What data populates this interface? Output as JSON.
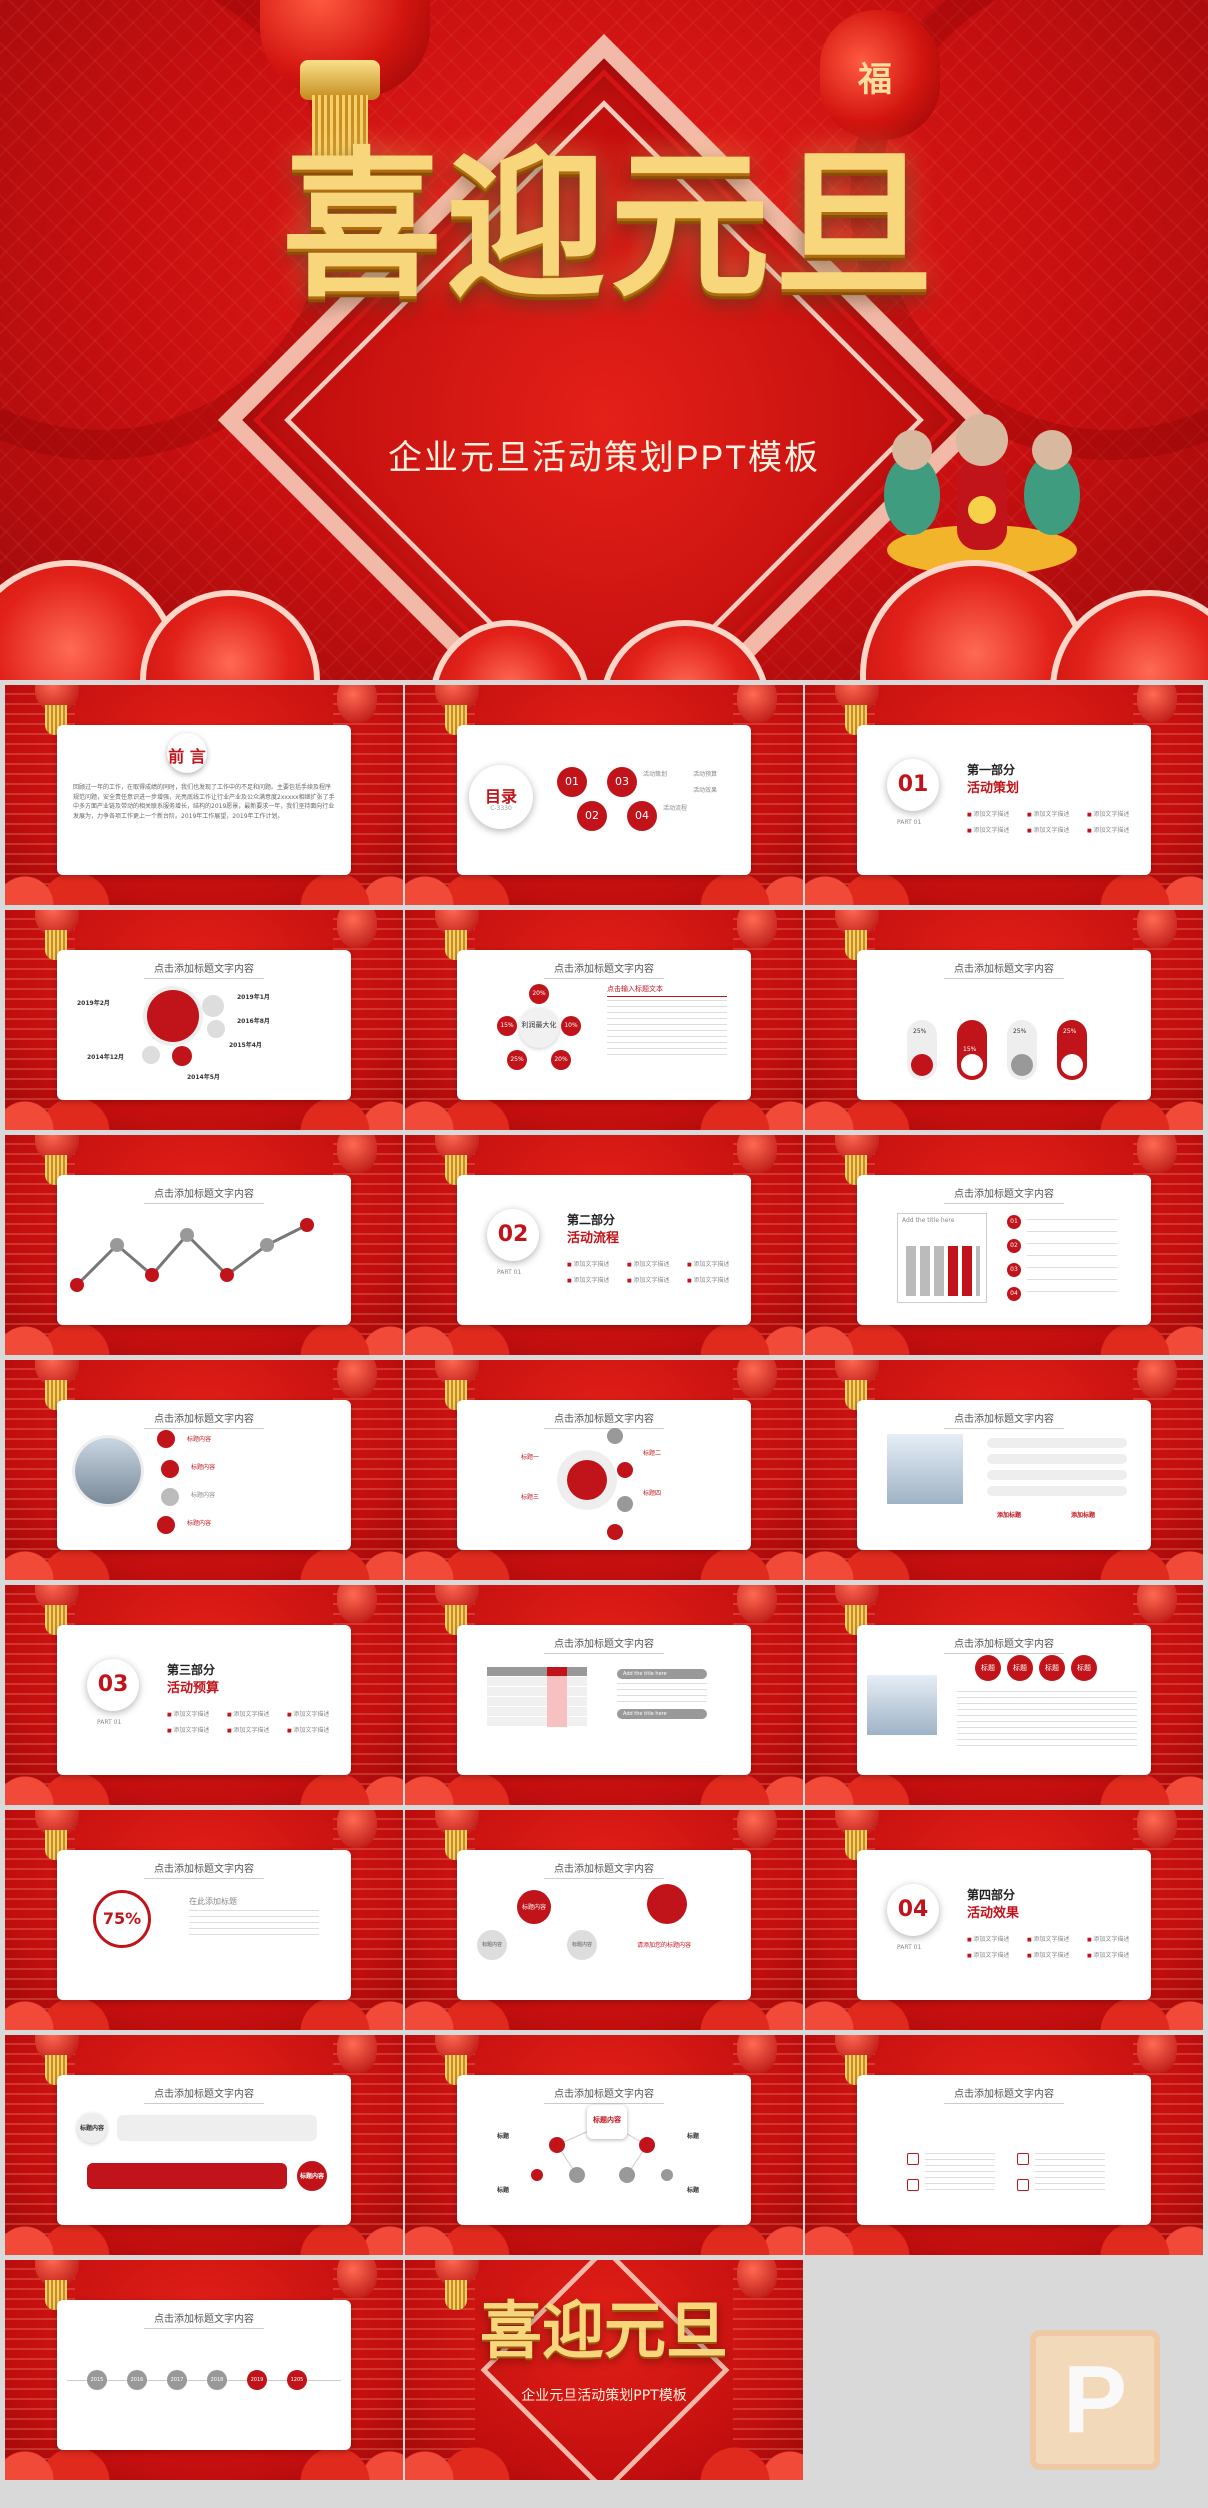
{
  "hero": {
    "title": "喜迎元旦",
    "subtitle": "企业元旦活动策划PPT模板",
    "lantern_char": "福"
  },
  "slides": {
    "s1": {
      "heading": "前 言",
      "body": "回顾过一年的工作，在取得成绩的同时，我们也发现了工作中的不足和问题。主要包括手续及程序规范问题，安全责任意识进一步增强，光亮底线工作让行业产业及公众满意度2xxxxx相继扩张了手中多方面产业链及带动的相关联系服务增长，结构的2019愿景，最新要求一年，我们坚持面向行业发展为，力争各项工作更上一个新台阶。2019年工作展望，2019年工作计划。"
    },
    "s2": {
      "heading": "目录",
      "heading_sub": "C-3330",
      "items": [
        "01",
        "02",
        "03",
        "04"
      ],
      "labels": [
        "活动策划",
        "活动流程",
        "活动预算",
        "活动效果"
      ]
    },
    "s3": {
      "num": "01",
      "head": "第一部分",
      "sub": "活动策划",
      "part": "PART 01",
      "bullets": [
        "添加文字描述",
        "添加文字描述",
        "添加文字描述",
        "添加文字描述",
        "添加文字描述",
        "添加文字描述"
      ]
    },
    "s4": {
      "title": "点击添加标题文字内容",
      "dates": [
        "2019年2月",
        "2019年1月",
        "2016年8月",
        "2015年4月",
        "2014年12月",
        "2014年5月"
      ]
    },
    "s5": {
      "title": "点击添加标题文字内容",
      "center": "利润最大化",
      "pcts": [
        "20%",
        "15%",
        "10%",
        "25%",
        "20%"
      ],
      "side_title": "点击输入标题文本"
    },
    "s6": {
      "title": "点击添加标题文字内容",
      "pcts": [
        "25%",
        "15%",
        "25%",
        "25%"
      ]
    },
    "s7": {
      "title": "点击添加标题文字内容"
    },
    "s8": {
      "num": "02",
      "head": "第二部分",
      "sub": "活动流程",
      "part": "PART 01",
      "bullets": [
        "添加文字描述",
        "添加文字描述",
        "添加文字描述",
        "添加文字描述",
        "添加文字描述",
        "添加文字描述"
      ]
    },
    "s9": {
      "title": "点击添加标题文字内容",
      "nums": [
        "01",
        "02",
        "03",
        "04"
      ],
      "chart_head": "Add the title here"
    },
    "s10": {
      "title": "点击添加标题文字内容",
      "items": [
        "标题内容",
        "标题内容",
        "标题内容",
        "标题内容"
      ]
    },
    "s11": {
      "title": "点击添加标题文字内容",
      "items": [
        "标题一",
        "标题二",
        "标题三",
        "标题四"
      ]
    },
    "s12": {
      "title": "点击添加标题文字内容",
      "labels": [
        "添加标题",
        "添加标题"
      ]
    },
    "s13": {
      "num": "03",
      "head": "第三部分",
      "sub": "活动预算",
      "part": "PART 01",
      "bullets": [
        "添加文字描述",
        "添加文字描述",
        "添加文字描述",
        "添加文字描述",
        "添加文字描述",
        "添加文字描述"
      ]
    },
    "s14": {
      "title": "点击添加标题文字内容",
      "pills": [
        "Add the title here",
        "Add the title here"
      ]
    },
    "s15": {
      "title": "点击添加标题文字内容",
      "tags": [
        "标题",
        "标题",
        "标题",
        "标题"
      ]
    },
    "s16": {
      "title": "点击添加标题文字内容",
      "pct": "75%",
      "label": "在此添加标题"
    },
    "s17": {
      "title": "点击添加标题文字内容",
      "bubbles": [
        "标题内容",
        "标题内容",
        "标题内容"
      ],
      "caption": "请添加您的标题内容"
    },
    "s18": {
      "num": "04",
      "head": "第四部分",
      "sub": "活动效果",
      "part": "PART 01",
      "bullets": [
        "添加文字描述",
        "添加文字描述",
        "添加文字描述",
        "添加文字描述",
        "添加文字描述",
        "添加文字描述"
      ]
    },
    "s19": {
      "title": "点击添加标题文字内容",
      "labels": [
        "标题内容",
        "标题内容"
      ]
    },
    "s20": {
      "title": "点击添加标题文字内容",
      "center": "标题内容",
      "labels": [
        "标题",
        "标题",
        "标题",
        "标题"
      ]
    },
    "s21": {
      "title": "点击添加标题文字内容"
    },
    "s22": {
      "title": "点击添加标题文字内容",
      "years": [
        "2015",
        "2016",
        "2017",
        "2018",
        "2019",
        "1205"
      ]
    },
    "s23": {
      "title": "喜迎元旦",
      "subtitle": "企业元旦活动策划PPT模板"
    }
  },
  "watermark": {
    "glyph": "P"
  },
  "colors": {
    "accent": "#c0141a",
    "gold": "#f8d77c",
    "bg": "#d9d9d9"
  }
}
